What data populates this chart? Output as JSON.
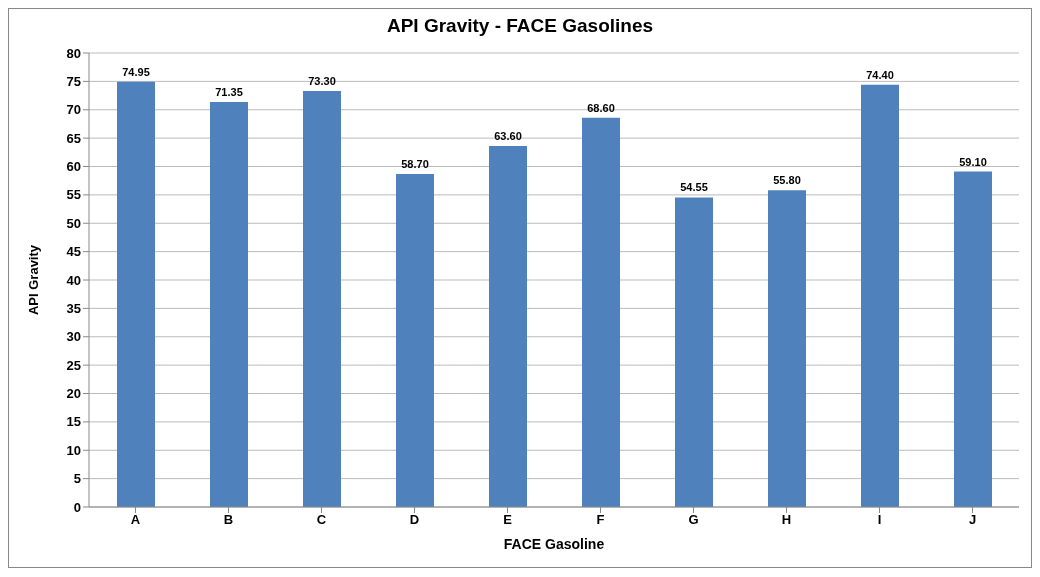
{
  "chart_data": {
    "type": "bar",
    "title": "API Gravity - FACE Gasolines",
    "xlabel": "FACE Gasoline",
    "ylabel": "API Gravity",
    "categories": [
      "A",
      "B",
      "C",
      "D",
      "E",
      "F",
      "G",
      "H",
      "I",
      "J"
    ],
    "values": [
      74.95,
      71.35,
      73.3,
      58.7,
      63.6,
      68.6,
      54.55,
      55.8,
      74.4,
      59.1
    ],
    "value_labels": [
      "74.95",
      "71.35",
      "73.30",
      "58.70",
      "63.60",
      "68.60",
      "54.55",
      "55.80",
      "74.40",
      "59.10"
    ],
    "color": "#4f81bd",
    "ylim": [
      0,
      80
    ],
    "yticks": [
      0,
      5,
      10,
      15,
      20,
      25,
      30,
      35,
      40,
      45,
      50,
      55,
      60,
      65,
      70,
      75,
      80
    ],
    "grid": "y"
  }
}
